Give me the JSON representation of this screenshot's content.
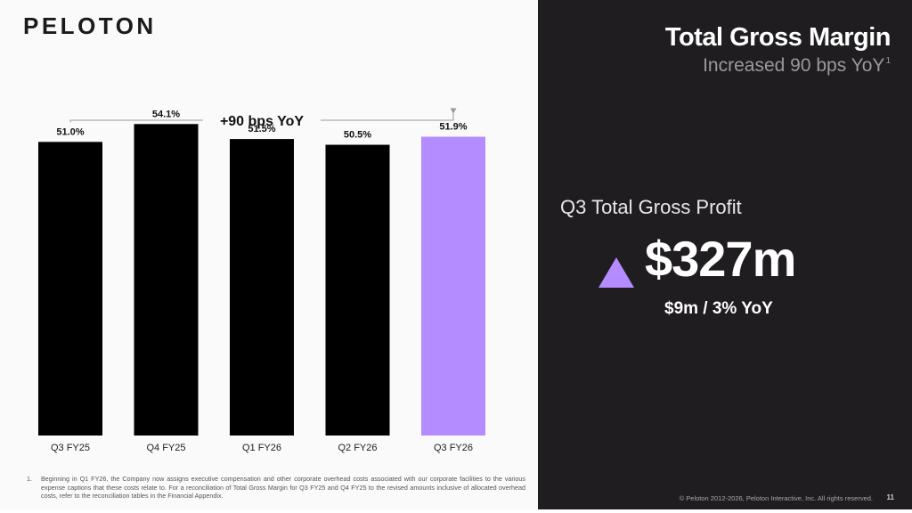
{
  "logo": "PELOTON",
  "slide": {
    "title": "Total Gross Margin",
    "subtitle": "Increased 90 bps YoY",
    "subtitle_footnote_ref": "1"
  },
  "kpi": {
    "label": "Q3 Total Gross Profit",
    "value": "$327m",
    "delta": "$9m / 3% YoY",
    "arrow_icon": "triangle-up-icon"
  },
  "chart_data": {
    "type": "bar",
    "categories": [
      "Q3 FY25",
      "Q4 FY25",
      "Q1 FY26",
      "Q2 FY26",
      "Q3 FY26"
    ],
    "values": [
      51.0,
      54.1,
      51.5,
      50.5,
      51.9
    ],
    "value_labels": [
      "51.0%",
      "54.1%",
      "51.5%",
      "50.5%",
      "51.9%"
    ],
    "bar_colors": [
      "#000000",
      "#000000",
      "#000000",
      "#000000",
      "#b48cff"
    ],
    "annotation": "+90 bps YoY",
    "title": "",
    "xlabel": "",
    "ylabel": "",
    "ylim": [
      0,
      56
    ],
    "grid": false,
    "legend": "none"
  },
  "footnote": {
    "marker": "1.",
    "text": "Beginning in Q1 FY26, the Company now assigns executive compensation and other corporate overhead costs associated with our corporate facilities to the various expense captions that these costs relate to. For a reconciliation of Total Gross Margin for Q3 FY25 and Q4 FY25 to the revised amounts inclusive of allocated overhead costs, refer to the reconciliation tables in the Financial Appendix."
  },
  "footer": {
    "copyright": "© Peloton 2012-2026, Peloton Interactive, Inc. All rights reserved.",
    "page_number": "11"
  },
  "colors": {
    "accent": "#b48cff",
    "dark_panel": "#1f1d20",
    "bar": "#000000"
  }
}
